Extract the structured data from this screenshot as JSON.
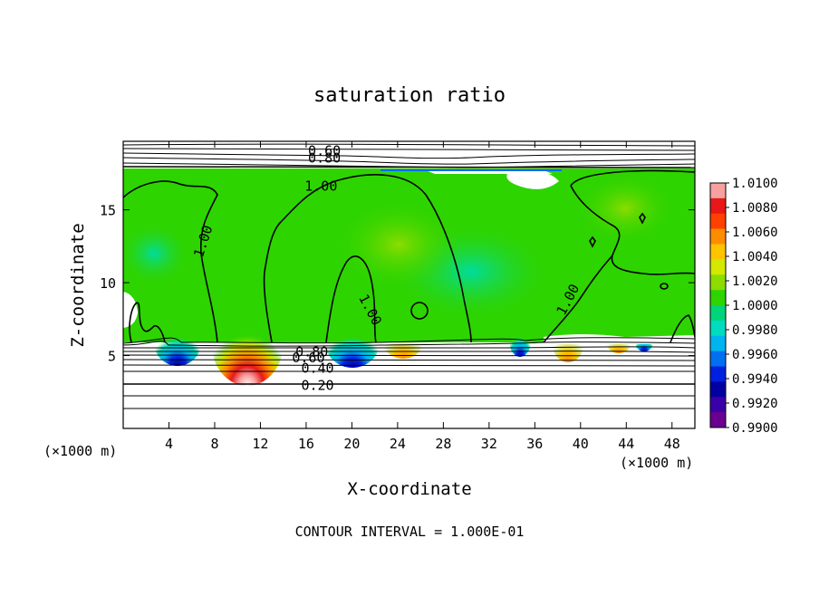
{
  "chart_data": {
    "type": "heatmap",
    "title": "saturation ratio",
    "xlabel": "X-coordinate",
    "ylabel": "Z-coordinate",
    "x_unit_note": "(×1000 m)",
    "z_unit_note": "(×1000 m)",
    "xlim": [
      0,
      50
    ],
    "ylim": [
      0,
      19.7
    ],
    "x_ticks": [
      4,
      8,
      12,
      16,
      20,
      24,
      28,
      32,
      36,
      40,
      44,
      48
    ],
    "y_ticks": [
      5,
      10,
      15
    ],
    "footer": "CONTOUR INTERVAL = 1.000E-01",
    "colorbar": {
      "min": 0.99,
      "max": 1.01,
      "labels": [
        "1.0100",
        "1.0080",
        "1.0060",
        "1.0040",
        "1.0020",
        "1.0000",
        "0.9980",
        "0.9960",
        "0.9940",
        "0.9920",
        "0.9900"
      ],
      "colors": [
        "#f7a0a0",
        "#e81818",
        "#ff4000",
        "#ff8c00",
        "#ffc400",
        "#d4e800",
        "#8cdc00",
        "#2ed400",
        "#00d47a",
        "#00dcc0",
        "#00b4f0",
        "#0070f0",
        "#0020e0",
        "#0000a0",
        "#3a00a8",
        "#6a0090"
      ]
    },
    "contour_labels": [
      {
        "text": "0.60",
        "x": 17.6,
        "z": 19.1
      },
      {
        "text": "0.80",
        "x": 17.6,
        "z": 18.6
      },
      {
        "text": "1.00",
        "x": 17.3,
        "z": 16.7
      },
      {
        "text": "1.00",
        "x": 7.0,
        "z": 12.9
      },
      {
        "text": "1.00",
        "x": 21.6,
        "z": 8.2
      },
      {
        "text": "1.00",
        "x": 38.9,
        "z": 8.9
      },
      {
        "text": "0.80",
        "x": 16.5,
        "z": 5.3
      },
      {
        "text": "0.60",
        "x": 16.2,
        "z": 4.9
      },
      {
        "text": "0.40",
        "x": 17.0,
        "z": 4.2
      },
      {
        "text": "0.20",
        "x": 17.0,
        "z": 3.0
      }
    ],
    "regions": {
      "lower_dry_layer_z": [
        0,
        6.1
      ],
      "saturated_band_z": [
        6.1,
        18.0
      ],
      "upper_dry_layer_z": [
        18.0,
        19.7
      ],
      "background_value": 1.0,
      "hot_spots": [
        {
          "x": 10.9,
          "value": 1.01
        },
        {
          "x": 24.5,
          "value": 1.004
        },
        {
          "x": 38.6,
          "value": 1.004
        },
        {
          "x": 43.0,
          "value": 1.004
        }
      ],
      "cold_spots": [
        {
          "x": 4.5,
          "value": 0.993
        },
        {
          "x": 20.0,
          "value": 0.992
        },
        {
          "x": 34.7,
          "value": 0.994
        },
        {
          "x": 45.2,
          "value": 0.996
        }
      ]
    }
  }
}
